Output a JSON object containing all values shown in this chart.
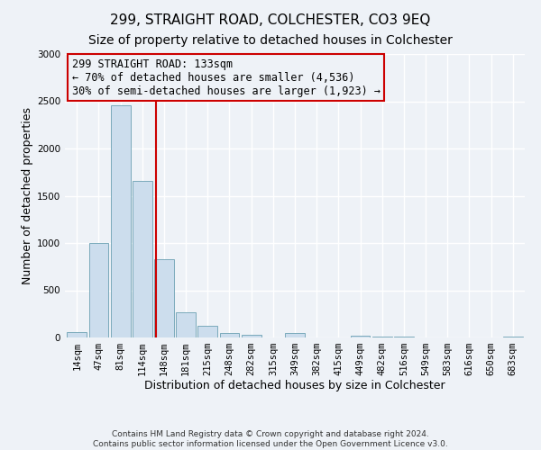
{
  "title": "299, STRAIGHT ROAD, COLCHESTER, CO3 9EQ",
  "subtitle": "Size of property relative to detached houses in Colchester",
  "xlabel": "Distribution of detached houses by size in Colchester",
  "ylabel": "Number of detached properties",
  "footer_lines": [
    "Contains HM Land Registry data © Crown copyright and database right 2024.",
    "Contains public sector information licensed under the Open Government Licence v3.0."
  ],
  "categories": [
    "14sqm",
    "47sqm",
    "81sqm",
    "114sqm",
    "148sqm",
    "181sqm",
    "215sqm",
    "248sqm",
    "282sqm",
    "315sqm",
    "349sqm",
    "382sqm",
    "415sqm",
    "449sqm",
    "482sqm",
    "516sqm",
    "549sqm",
    "583sqm",
    "616sqm",
    "650sqm",
    "683sqm"
  ],
  "values": [
    55,
    1000,
    2460,
    1660,
    830,
    265,
    120,
    50,
    30,
    0,
    50,
    0,
    0,
    20,
    5,
    5,
    3,
    2,
    2,
    2,
    12
  ],
  "bar_color": "#ccdded",
  "bar_edge_color": "#7aaabb",
  "vline_x": 3.62,
  "vline_color": "#cc0000",
  "annotation_text": "299 STRAIGHT ROAD: 133sqm\n← 70% of detached houses are smaller (4,536)\n30% of semi-detached houses are larger (1,923) →",
  "annotation_box_color": "#cc0000",
  "ylim": [
    0,
    3000
  ],
  "yticks": [
    0,
    500,
    1000,
    1500,
    2000,
    2500,
    3000
  ],
  "bg_color": "#eef2f7",
  "grid_color": "#ffffff",
  "title_fontsize": 11,
  "subtitle_fontsize": 10,
  "axis_label_fontsize": 9,
  "tick_fontsize": 7.5,
  "annotation_fontsize": 8.5
}
